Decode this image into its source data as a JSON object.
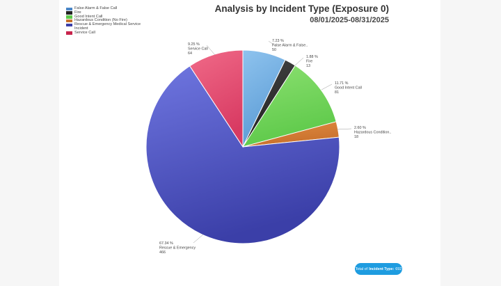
{
  "chart_data": {
    "type": "pie",
    "title": "Analysis by Incident Type (Exposure 0)",
    "subtitle": "08/01/2025-08/31/2025",
    "legend_position": "top-left",
    "slices": [
      {
        "name": "False Alarm & False Call",
        "short_label": "False Alarm & False..",
        "percent": "7.23 %",
        "value": 50,
        "color": "#5b9bd5",
        "color_light": "#8ec3ee"
      },
      {
        "name": "Fire",
        "short_label": "Fire",
        "percent": "1.88 %",
        "value": 13,
        "color": "#222222",
        "color_light": "#444444"
      },
      {
        "name": "Good Intent Call",
        "short_label": "Good Intent Call",
        "percent": "11.71 %",
        "value": 81,
        "color": "#5ec94a",
        "color_light": "#8be070"
      },
      {
        "name": "Hazardous Condition (No Fire)",
        "short_label": "Hazardous Condition..",
        "percent": "2.60 %",
        "value": 18,
        "color": "#c8702c",
        "color_light": "#e08a40"
      },
      {
        "name": "Rescue & Emergency Medical Service Incident",
        "short_label": "Rescue & Emergency",
        "percent": "67.34 %",
        "value": 466,
        "color": "#3b3fa8",
        "color_light": "#6f76e0"
      },
      {
        "name": "Service Call",
        "short_label": "Service Call",
        "percent": "9.25 %",
        "value": 64,
        "color": "#d83a62",
        "color_light": "#f06a88"
      }
    ],
    "legend": {
      "items": [
        {
          "lines": [
            "False Alarm & False Call"
          ],
          "color": "#4a86c8"
        },
        {
          "lines": [
            "Fire"
          ],
          "color": "#222222"
        },
        {
          "lines": [
            "Good Intent Call"
          ],
          "color": "#5ec94a"
        },
        {
          "lines": [
            "Hazardous Condition (No Fire)"
          ],
          "color": "#c8702c"
        },
        {
          "lines": [
            "Rescue & Emergency Medical Service",
            "Incident"
          ],
          "color": "#3b3fa8"
        },
        {
          "lines": [
            "Service Call"
          ],
          "color": "#c8244c"
        }
      ]
    }
  },
  "total": {
    "prefix": "Total of",
    "label": "Incident Type:",
    "value": "692"
  }
}
